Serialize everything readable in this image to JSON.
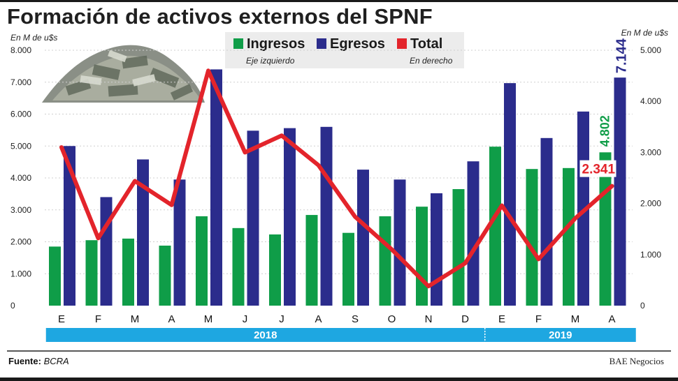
{
  "title": "Formación de activos externos del SPNF",
  "unit_left": "En M de u$s",
  "unit_right": "En M de u$s",
  "legend": [
    {
      "label": "Ingresos",
      "color": "#0f9d48"
    },
    {
      "label": "Egresos",
      "color": "#2b2c8c"
    },
    {
      "label": "Total",
      "color": "#e3242b"
    }
  ],
  "legend_notes": {
    "left_axis": "Eje izquierdo",
    "right_axis": "En derecho"
  },
  "source_label": "Fuente:",
  "source_value": "BCRA",
  "credit": "BAE Negocios",
  "chart_data": {
    "type": "bar",
    "categories": [
      "E",
      "F",
      "M",
      "A",
      "M",
      "J",
      "J",
      "A",
      "S",
      "O",
      "N",
      "D",
      "E",
      "F",
      "M",
      "A"
    ],
    "years": [
      {
        "label": "2018",
        "start": 0,
        "end": 11
      },
      {
        "label": "2019",
        "start": 12,
        "end": 15
      }
    ],
    "series": [
      {
        "name": "Ingresos",
        "axis": "left",
        "type": "bar",
        "color": "#0f9d48",
        "values": [
          1850,
          2050,
          2100,
          1880,
          2800,
          2430,
          2230,
          2840,
          2280,
          2800,
          3100,
          3650,
          4980,
          4280,
          4310,
          4802
        ]
      },
      {
        "name": "Egresos",
        "axis": "left",
        "type": "bar",
        "color": "#2b2c8c",
        "values": [
          5000,
          3400,
          4580,
          3950,
          7400,
          5480,
          5560,
          5600,
          4260,
          3950,
          3520,
          4520,
          6970,
          5250,
          6080,
          7144
        ]
      },
      {
        "name": "Total",
        "axis": "right",
        "type": "line",
        "color": "#e3242b",
        "values": [
          3100,
          1320,
          2440,
          1970,
          4600,
          3000,
          3330,
          2750,
          1740,
          1100,
          380,
          830,
          1960,
          910,
          1710,
          2341
        ]
      }
    ],
    "left_axis": {
      "min": 0,
      "max": 8000,
      "ticks": [
        "0",
        "1.000",
        "2.000",
        "3.000",
        "4.000",
        "5.000",
        "6.000",
        "7.000",
        "8.000"
      ]
    },
    "right_axis": {
      "min": 0,
      "max": 5000,
      "ticks": [
        "0",
        "1.000",
        "2.000",
        "3.000",
        "4.000",
        "5.000"
      ]
    },
    "labels": {
      "ingresos_last": "4.802",
      "egresos_last": "7.144",
      "total_last": "2.341"
    }
  }
}
